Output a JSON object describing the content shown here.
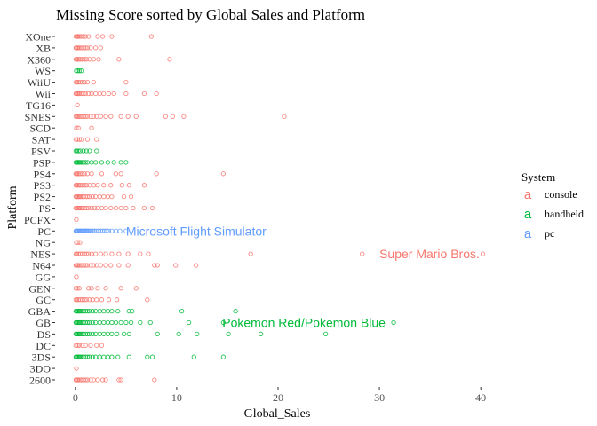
{
  "chart_data": {
    "type": "scatter",
    "title": "Missing Score sorted by Global Sales and Platform",
    "xlabel": "Global_Sales",
    "ylabel": "Platform",
    "xlim": [
      -2,
      42
    ],
    "x_ticks": [
      "0",
      "10",
      "20",
      "30",
      "40"
    ],
    "x_tick_values": [
      0,
      10,
      20,
      30,
      40
    ],
    "grid": false,
    "legend_position": "right",
    "legend": {
      "title": "System",
      "glyph": "a",
      "entries": [
        {
          "name": "console",
          "color": "#F8766D"
        },
        {
          "name": "handheld",
          "color": "#00BA38"
        },
        {
          "name": "pc",
          "color": "#619CFF"
        }
      ]
    },
    "categories": [
      "XOne",
      "XB",
      "X360",
      "WS",
      "WiiU",
      "Wii",
      "TG16",
      "SNES",
      "SCD",
      "SAT",
      "PSV",
      "PSP",
      "PS4",
      "PS3",
      "PS2",
      "PS",
      "PCFX",
      "PC",
      "NG",
      "NES",
      "N64",
      "GG",
      "GEN",
      "GC",
      "GBA",
      "GB",
      "DS",
      "DC",
      "3DS",
      "3DO",
      "2600"
    ],
    "annotations": [
      {
        "text": "Microsoft Flight Simulator",
        "x": 5,
        "y": "PC",
        "color": "#619CFF"
      },
      {
        "text": "Super Mario Bros.",
        "x": 30,
        "y": "NES",
        "color": "#F8766D"
      },
      {
        "text": "Pokemon Red/Pokemon Blue",
        "x": 14.5,
        "y": "GB",
        "color": "#00BA38"
      }
    ],
    "series": [
      {
        "name": "console",
        "color": "#F8766D",
        "points": [
          {
            "y": "XOne",
            "x": [
              0.05,
              0.12,
              0.2,
              0.3,
              0.45,
              0.6,
              0.8,
              1.0,
              1.3,
              2.2,
              2.7,
              3.6,
              7.5
            ]
          },
          {
            "y": "XB",
            "x": [
              0.05,
              0.1,
              0.2,
              0.3,
              0.45,
              0.6,
              0.8,
              1.0,
              1.2,
              1.5,
              2.0,
              2.5
            ]
          },
          {
            "y": "X360",
            "x": [
              0.05,
              0.1,
              0.2,
              0.35,
              0.5,
              0.7,
              0.9,
              1.1,
              1.4,
              1.8,
              2.3,
              4.3,
              9.3
            ]
          },
          {
            "y": "WiiU",
            "x": [
              0.05,
              0.15,
              0.3,
              0.5,
              0.7,
              0.9,
              1.2,
              1.8,
              5.0
            ]
          },
          {
            "y": "Wii",
            "x": [
              0.05,
              0.1,
              0.2,
              0.3,
              0.4,
              0.6,
              0.8,
              1.0,
              1.3,
              1.6,
              2.0,
              2.4,
              2.8,
              3.3,
              3.8,
              5.0,
              6.8,
              8.0
            ]
          },
          {
            "y": "TG16",
            "x": [
              0.2
            ]
          },
          {
            "y": "SNES",
            "x": [
              0.05,
              0.15,
              0.3,
              0.45,
              0.6,
              0.8,
              1.0,
              1.2,
              1.5,
              1.8,
              2.1,
              2.5,
              3.0,
              3.5,
              4.5,
              5.2,
              6.0,
              8.9,
              9.6,
              10.7,
              20.6
            ]
          },
          {
            "y": "SCD",
            "x": [
              0.1,
              0.3,
              1.6
            ]
          },
          {
            "y": "SAT",
            "x": [
              0.05,
              0.2,
              0.4,
              0.6,
              1.2,
              2.1
            ]
          },
          {
            "y": "PS4",
            "x": [
              0.05,
              0.12,
              0.2,
              0.35,
              0.5,
              0.7,
              0.9,
              1.2,
              1.6,
              2.6,
              4.0,
              4.5,
              8.0,
              14.6
            ]
          },
          {
            "y": "PS3",
            "x": [
              0.05,
              0.1,
              0.2,
              0.35,
              0.5,
              0.7,
              0.9,
              1.1,
              1.4,
              1.8,
              2.2,
              2.8,
              3.5,
              4.6,
              5.3,
              6.8
            ]
          },
          {
            "y": "PS2",
            "x": [
              0.05,
              0.1,
              0.2,
              0.3,
              0.4,
              0.5,
              0.65,
              0.8,
              1.0,
              1.2,
              1.4,
              1.7,
              2.0,
              2.4,
              2.8,
              3.2,
              3.6,
              4.8,
              5.5
            ]
          },
          {
            "y": "PS",
            "x": [
              0.05,
              0.1,
              0.2,
              0.3,
              0.4,
              0.55,
              0.7,
              0.9,
              1.1,
              1.3,
              1.6,
              1.9,
              2.2,
              2.6,
              3.0,
              3.5,
              4.0,
              4.5,
              5.0,
              5.7,
              6.8,
              7.6
            ]
          },
          {
            "y": "PCFX",
            "x": [
              0.1
            ]
          },
          {
            "y": "NG",
            "x": [
              0.1,
              0.25,
              0.45
            ]
          },
          {
            "y": "NES",
            "x": [
              0.05,
              0.15,
              0.3,
              0.5,
              0.7,
              0.9,
              1.1,
              1.3,
              1.6,
              2.0,
              2.5,
              3.0,
              3.6,
              4.3,
              5.2,
              6.4,
              7.2,
              17.3,
              28.3,
              40.2
            ]
          },
          {
            "y": "N64",
            "x": [
              0.05,
              0.1,
              0.2,
              0.3,
              0.45,
              0.6,
              0.8,
              1.0,
              1.2,
              1.5,
              1.8,
              2.1,
              2.5,
              3.0,
              3.5,
              4.3,
              5.2,
              7.8,
              8.1,
              9.9,
              11.9
            ]
          },
          {
            "y": "GG",
            "x": [
              0.1
            ]
          },
          {
            "y": "GEN",
            "x": [
              0.05,
              0.2,
              0.4,
              1.3,
              1.6,
              2.2,
              3.0,
              4.5,
              6.0
            ]
          },
          {
            "y": "GC",
            "x": [
              0.05,
              0.15,
              0.3,
              0.5,
              0.7,
              0.9,
              1.1,
              1.4,
              1.7,
              2.1,
              2.6,
              3.3,
              4.1,
              7.1
            ]
          },
          {
            "y": "DC",
            "x": [
              0.05,
              0.2,
              0.4,
              0.7,
              1.0,
              1.5,
              2.1,
              2.6
            ]
          },
          {
            "y": "3DO",
            "x": [
              0.1
            ]
          },
          {
            "y": "2600",
            "x": [
              0.05,
              0.1,
              0.2,
              0.3,
              0.45,
              0.6,
              0.8,
              1.0,
              1.2,
              1.5,
              1.8,
              2.2,
              2.7,
              3.0,
              4.3,
              4.5,
              7.8
            ]
          }
        ]
      },
      {
        "name": "handheld",
        "color": "#00BA38",
        "points": [
          {
            "y": "WS",
            "x": [
              0.1,
              0.25,
              0.4,
              0.6
            ]
          },
          {
            "y": "PSV",
            "x": [
              0.05,
              0.15,
              0.3,
              0.5,
              0.8,
              1.1,
              1.4,
              2.1
            ]
          },
          {
            "y": "PSP",
            "x": [
              0.05,
              0.12,
              0.2,
              0.3,
              0.4,
              0.5,
              0.65,
              0.8,
              1.0,
              1.2,
              1.6,
              2.0,
              2.6,
              3.2,
              3.8,
              4.5,
              5.0
            ]
          },
          {
            "y": "GBA",
            "x": [
              0.05,
              0.1,
              0.2,
              0.3,
              0.4,
              0.5,
              0.65,
              0.8,
              1.0,
              1.2,
              1.4,
              1.7,
              2.0,
              2.4,
              2.8,
              3.2,
              3.6,
              4.2,
              5.3,
              5.6,
              10.5,
              15.8
            ]
          },
          {
            "y": "GB",
            "x": [
              0.05,
              0.1,
              0.2,
              0.3,
              0.4,
              0.5,
              0.65,
              0.8,
              1.0,
              1.2,
              1.4,
              1.7,
              2.0,
              2.4,
              2.8,
              3.2,
              3.6,
              4.0,
              4.5,
              5.0,
              5.5,
              6.4,
              7.4,
              11.2,
              14.6,
              31.4
            ]
          },
          {
            "y": "DS",
            "x": [
              0.05,
              0.1,
              0.2,
              0.3,
              0.4,
              0.5,
              0.65,
              0.8,
              1.0,
              1.2,
              1.4,
              1.7,
              2.0,
              2.4,
              2.8,
              3.2,
              3.6,
              4.1,
              4.8,
              5.3,
              8.1,
              10.2,
              12.0,
              15.1,
              18.3,
              24.7
            ]
          },
          {
            "y": "3DS",
            "x": [
              0.05,
              0.1,
              0.2,
              0.3,
              0.4,
              0.5,
              0.65,
              0.8,
              1.0,
              1.2,
              1.4,
              1.7,
              2.0,
              2.4,
              2.8,
              3.2,
              3.6,
              4.2,
              5.3,
              7.1,
              7.6,
              11.7,
              14.6
            ]
          }
        ]
      },
      {
        "name": "pc",
        "color": "#619CFF",
        "points": [
          {
            "y": "PC",
            "x": [
              0.05,
              0.1,
              0.15,
              0.2,
              0.3,
              0.4,
              0.5,
              0.6,
              0.7,
              0.8,
              0.9,
              1.0,
              1.1,
              1.2,
              1.3,
              1.45,
              1.6,
              1.75,
              1.9,
              2.1,
              2.3,
              2.5,
              2.7,
              2.9,
              3.1,
              3.3,
              3.6,
              4.0,
              4.4,
              5.0
            ]
          }
        ]
      }
    ]
  }
}
